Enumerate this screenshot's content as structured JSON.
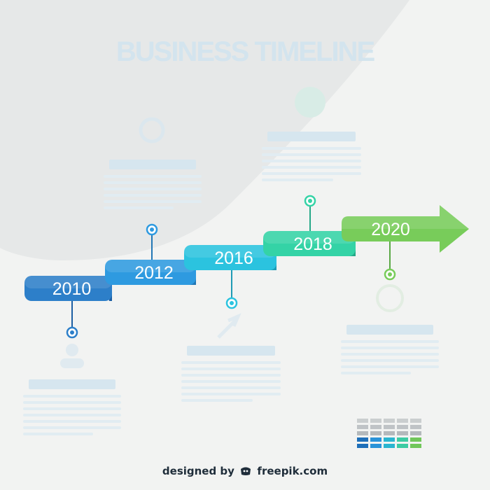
{
  "header": {
    "title": "BUSINESS TIMELINE"
  },
  "milestones": [
    {
      "year": "2010",
      "color": "#2d7fc9",
      "dark": "#1d5fa3"
    },
    {
      "year": "2012",
      "color": "#2e9ae0",
      "dark": "#2277b5"
    },
    {
      "year": "2016",
      "color": "#2bc3df",
      "dark": "#1f9bb5"
    },
    {
      "year": "2018",
      "color": "#34d3a6",
      "dark": "#25a888"
    },
    {
      "year": "2020",
      "color": "#78cc5a",
      "dark": "#5aa845"
    }
  ],
  "palette": {
    "swatches": [
      "#1e6fb9",
      "#2a93d8",
      "#2ab5d0",
      "#3ccba3",
      "#71c65a"
    ],
    "gray": "#a9aeb3"
  },
  "credit": {
    "prefix": "designed by",
    "brand": "freepik.com"
  }
}
